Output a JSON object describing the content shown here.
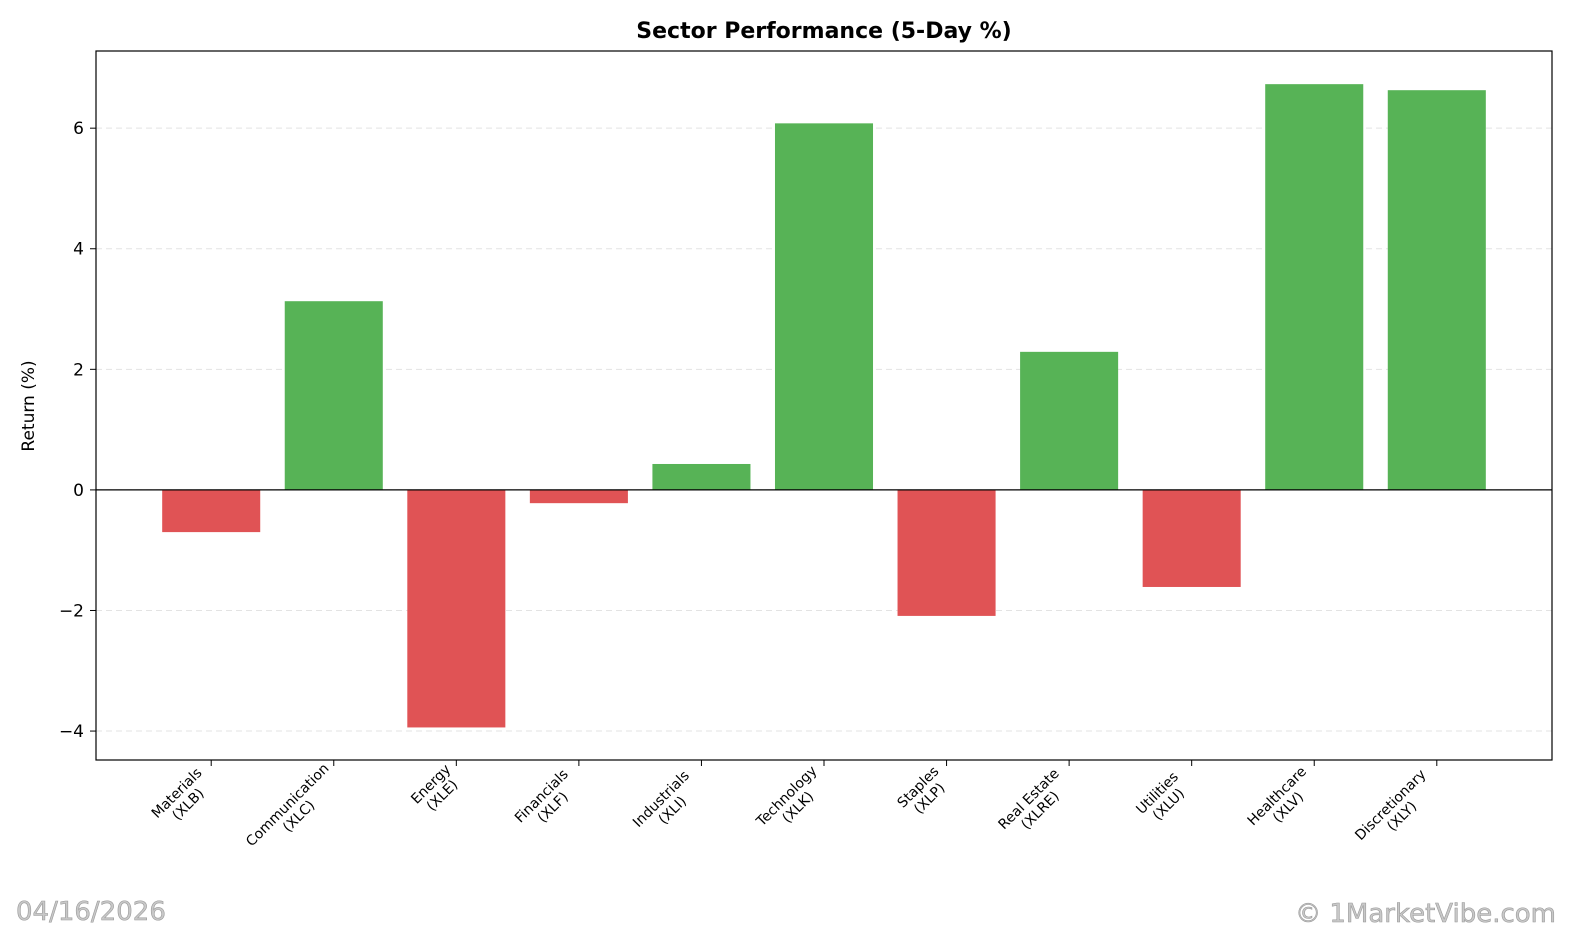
{
  "chart_data": {
    "type": "bar",
    "title": "Sector Performance (5-Day %)",
    "xlabel": "",
    "ylabel": "Return (%)",
    "categories": [
      "Materials\n(XLB)",
      "Communication\n(XLC)",
      "Energy\n(XLE)",
      "Financials\n(XLF)",
      "Industrials\n(XLI)",
      "Technology\n(XLK)",
      "Staples\n(XLP)",
      "Real Estate\n(XLRE)",
      "Utilities\n(XLU)",
      "Healthcare\n(XLV)",
      "Discretionary\n(XLY)"
    ],
    "values": [
      -0.7,
      3.13,
      -3.94,
      -0.22,
      0.43,
      6.08,
      -2.09,
      2.29,
      -1.61,
      6.73,
      6.63
    ],
    "ylim": [
      -4.48,
      7.28
    ],
    "yticks": [
      -4,
      -2,
      0,
      2,
      4,
      6
    ],
    "ytick_labels": [
      "−4",
      "−2",
      "0",
      "2",
      "4",
      "6"
    ],
    "grid": "horizontal dashed",
    "colors": {
      "positive": "#57b356",
      "negative": "#e05355"
    }
  },
  "watermarks": {
    "date": "04/16/2026",
    "copyright": "© 1MarketVibe.com"
  }
}
